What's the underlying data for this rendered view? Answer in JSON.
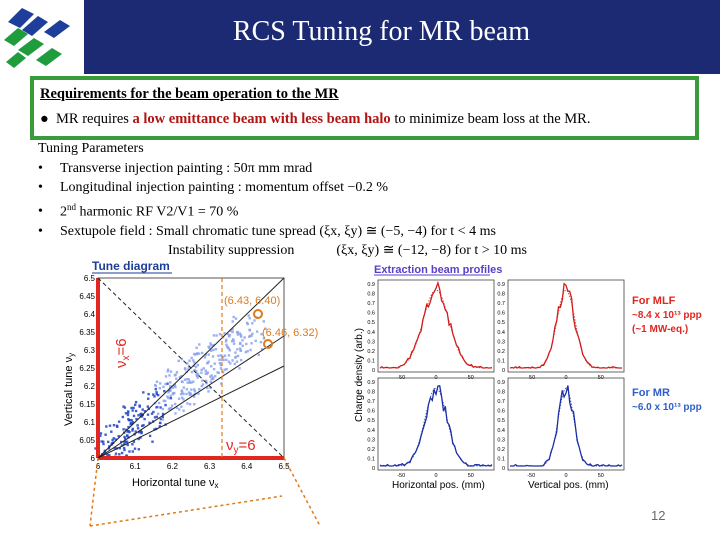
{
  "header": {
    "title": "RCS Tuning for MR beam",
    "colors": {
      "band": "#1b2a73",
      "logo_blue": "#1d3e9a",
      "logo_green": "#1f9c3c"
    }
  },
  "requirements": {
    "heading": "Requirements for the beam operation to the MR",
    "bullet": "l",
    "text_pre": "MR requires ",
    "text_highlight": "a low emittance beam with less beam halo",
    "text_post": " to minimize beam loss at the MR."
  },
  "tuning": {
    "heading": "Tuning Parameters",
    "items": [
      "Transverse injection painting : 50π mm mrad",
      "Longitudinal injection painting : momentum offset −0.2 %",
      "2nd harmonic RF V2/V1 = 70 %",
      "Sextupole field : Small chromatic tune spread (ξx, ξy) ≅ (−5, −4) for t < 4 ms"
    ],
    "sup_nd": "nd",
    "item3_rest": " harmonic RF V2/V1 = 70 %",
    "item3_lead": "2",
    "continuation_label": "Instability suppression",
    "continuation_value": "(ξx, ξy) ≅ (−12, −8) for t > 10 ms",
    "bullet": "•"
  },
  "tune_diagram": {
    "title": "Tune diagram",
    "xlabel": "Horizontal tune ν",
    "xlabel_sub": "x",
    "ylabel": "Vertical tune ν",
    "ylabel_sub": "y",
    "x_ticks": [
      "6",
      "6.1",
      "6.2",
      "6.3",
      "6.4",
      "6.5"
    ],
    "y_ticks": [
      "6",
      "6.05",
      "6.1",
      "6.15",
      "6.2",
      "6.25",
      "6.3",
      "6.35",
      "6.4",
      "6.45",
      "6.5"
    ],
    "point1": "(6.43, 6.40)",
    "point2": "(6.46, 6.32)",
    "res_vx": "ν",
    "res_vx_sub": "x",
    "res_vx_eq": "=6",
    "res_vy": "ν",
    "res_vy_sub": "y",
    "res_vy_eq": "=6",
    "colors": {
      "scatter": "#3a5fd9",
      "red": "#e0261f",
      "orange": "#e07a18",
      "title": "#1d3e9a"
    }
  },
  "profiles": {
    "title": "Extraction beam profiles",
    "ylabel": "Charge density (arb.)",
    "xlabel_h": "Horizontal pos. (mm)",
    "xlabel_v": "Vertical pos. (mm)",
    "y_ticks": [
      "0",
      "0.1",
      "0.2",
      "0.3",
      "0.4",
      "0.5",
      "0.6",
      "0.7",
      "0.8",
      "0.9"
    ],
    "x_ticks": [
      "-50",
      "0",
      "50"
    ],
    "mlf_label": "For MLF",
    "mlf_ppp": "~8.4 x 10¹³ ppp",
    "mlf_power": "(~1 MW-eq.)",
    "mr_label": "For MR",
    "mr_ppp": "~6.0 x 10¹³ ppp",
    "colors": {
      "mlf": "#d41c1c",
      "mr": "#1a2fa8",
      "title": "#5b3fc7",
      "label": "#e0261f",
      "label_mr": "#2e5fc9"
    }
  },
  "page_number": "12"
}
